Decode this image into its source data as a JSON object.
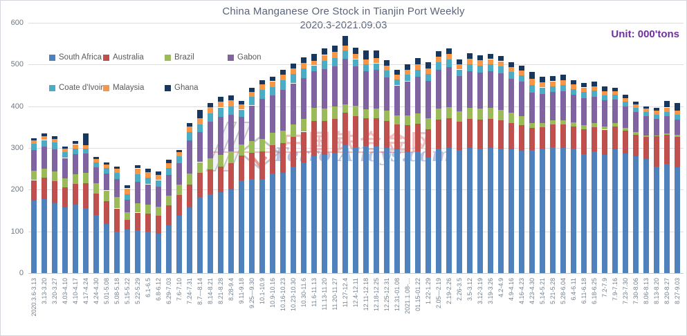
{
  "title": "China Manganese Ore Stock in Tianjin Port Weekly",
  "subtitle": "2020.3-2021.09.03",
  "unit_label": "Unit: 000'tons",
  "watermark": {
    "cn": "中国铁合金网",
    "en": "Ferro-Alloys.com"
  },
  "colors": {
    "south_africa": "#4F81BD",
    "australia": "#C0504D",
    "brazil": "#9BBB59",
    "gabon": "#8064A2",
    "coate_divoire": "#4BACC6",
    "malaysia": "#F79646",
    "ghana": "#17375E",
    "unit_text": "#7030A0",
    "gridline": "#dcdce2",
    "axis_text": "#6f7680"
  },
  "chart_data": {
    "type": "bar",
    "stacked": true,
    "title": "China Manganese Ore Stock in Tianjin Port Weekly",
    "subtitle": "2020.3-2021.09.03",
    "unit": "000'tons",
    "xlabel": "",
    "ylabel": "",
    "ylim": [
      0,
      600
    ],
    "yticks": [
      0,
      100,
      200,
      300,
      400,
      500,
      600
    ],
    "grid": true,
    "legend_position": "inside-top-left",
    "categories": [
      "2020.3.6-3.13",
      "3.13-3.20",
      "3.20-3.27",
      "4.03-4.10",
      "4.10-4.17",
      "4.17-4.24",
      "4.24-4.30",
      "5.01-5.08",
      "5.08-5.18",
      "5.15-5.22",
      "5.22-5.29",
      "6.1-6.5",
      "6.8-6.12",
      "6.29-7.03",
      "7.6-7.10",
      "7.24-7.31",
      "8.7—8.14",
      "8.14-8.21",
      "8.21-8.28",
      "8.28-9.4",
      "9.11-9.18",
      "9.25—9.30",
      "10.1-10.9",
      "10.9-10.16",
      "10.16-10.23",
      "10.23-10.30",
      "10.30-11.6",
      "11.6-11.13",
      "11.13-11.20",
      "11.20-11.27",
      "11.27-12.4",
      "12.4-12.11",
      "12.11-12.18",
      "12.18-12.25",
      "12.25-12.31",
      "12.31-01.08",
      "2021.1.08-…",
      "01.15-01.22",
      "1.22-1.29",
      "2.05—2.19",
      "2.19-2.26",
      "2.26-3.5",
      "3.5-3.12",
      "3.12-3.19",
      "3.19-3.26",
      "4.2-4.9",
      "4.9-4.16",
      "4.16-4.23",
      "4.23-4.30",
      "5.14-5.21",
      "5.21-5.28",
      "5.28-6.04",
      "6.4-6.11",
      "6.11-6.18",
      "6.18-6.25",
      "7.2-7.9",
      "7.9-7.16",
      "7.23-7.30",
      "7.30-8.06",
      "8.06-8.13",
      "8.13-8.20",
      "8.20-8.27",
      "8.27-9.03"
    ],
    "series": [
      {
        "name": "South Africa",
        "color": "#4F81BD",
        "values": [
          175,
          178,
          168,
          157,
          164,
          156,
          139,
          117,
          100,
          104,
          103,
          99,
          95,
          114,
          137,
          157,
          182,
          189,
          194,
          201,
          222,
          225,
          226,
          238,
          241,
          255,
          265,
          280,
          284,
          288,
          307,
          302,
          305,
          303,
          300,
          296,
          290,
          292,
          277,
          298,
          300,
          295,
          300,
          298,
          300,
          298,
          296,
          293,
          295,
          298,
          302,
          300,
          298,
          285,
          292,
          284,
          296,
          287,
          280,
          274,
          255,
          262,
          254
        ]
      },
      {
        "name": "Australia",
        "color": "#C0504D",
        "values": [
          48,
          50,
          52,
          48,
          50,
          60,
          52,
          55,
          55,
          24,
          42,
          44,
          42,
          48,
          50,
          55,
          59,
          60,
          62,
          63,
          60,
          64,
          66,
          68,
          70,
          72,
          74,
          85,
          80,
          82,
          78,
          74,
          66,
          68,
          65,
          60,
          64,
          66,
          68,
          70,
          72,
          68,
          70,
          70,
          70,
          68,
          64,
          62,
          53,
          52,
          54,
          56,
          54,
          60,
          58,
          60,
          56,
          54,
          52,
          52,
          73,
          70,
          73
        ]
      },
      {
        "name": "Brazil",
        "color": "#9BBB59",
        "values": [
          22,
          23,
          24,
          23,
          23,
          25,
          24,
          26,
          28,
          18,
          22,
          22,
          22,
          24,
          25,
          26,
          25,
          26,
          27,
          28,
          26,
          28,
          30,
          30,
          31,
          30,
          31,
          31,
          30,
          30,
          19,
          25,
          22,
          24,
          24,
          22,
          24,
          25,
          26,
          26,
          26,
          25,
          26,
          26,
          26,
          25,
          24,
          22,
          11,
          10,
          10,
          10,
          9,
          9,
          9,
          8,
          8,
          7,
          6,
          4,
          2,
          3,
          4
        ]
      },
      {
        "name": "Gabon",
        "color": "#8064A2",
        "values": [
          50,
          52,
          53,
          48,
          48,
          45,
          38,
          40,
          42,
          29,
          52,
          48,
          48,
          50,
          52,
          80,
          72,
          88,
          92,
          88,
          66,
          85,
          95,
          90,
          98,
          98,
          98,
          88,
          95,
          96,
          110,
          94,
          91,
          92,
          80,
          72,
          82,
          88,
          90,
          94,
          96,
          84,
          88,
          86,
          88,
          88,
          82,
          82,
          74,
          70,
          68,
          70,
          66,
          66,
          64,
          62,
          56,
          52,
          48,
          46,
          39,
          42,
          37
        ]
      },
      {
        "name": "Coate d'Ivoire",
        "color": "#4BACC6",
        "values": [
          15,
          16,
          16,
          14,
          14,
          12,
          12,
          14,
          15,
          14,
          18,
          16,
          16,
          16,
          16,
          20,
          19,
          20,
          22,
          20,
          18,
          20,
          22,
          20,
          22,
          22,
          22,
          14,
          20,
          20,
          20,
          18,
          16,
          16,
          16,
          14,
          15,
          16,
          17,
          18,
          18,
          16,
          17,
          17,
          16,
          16,
          16,
          15,
          18,
          15,
          14,
          15,
          14,
          14,
          14,
          12,
          11,
          11,
          10,
          10,
          10,
          10,
          11
        ]
      },
      {
        "name": "Malaysia",
        "color": "#F79646",
        "values": [
          8,
          9,
          9,
          9,
          10,
          9,
          8,
          9,
          10,
          14,
          14,
          13,
          12,
          12,
          10,
          14,
          14,
          15,
          14,
          15,
          12,
          13,
          14,
          14,
          14,
          14,
          14,
          11,
          14,
          14,
          12,
          13,
          12,
          13,
          12,
          11,
          12,
          13,
          13,
          13,
          13,
          12,
          13,
          13,
          13,
          13,
          12,
          12,
          14,
          13,
          12,
          12,
          11,
          11,
          11,
          10,
          9,
          9,
          8,
          8,
          10,
          10,
          11
        ]
      },
      {
        "name": "Ghana",
        "color": "#17375E",
        "values": [
          6,
          7,
          7,
          5,
          8,
          28,
          5,
          5,
          6,
          8,
          8,
          8,
          9,
          8,
          5,
          8,
          20,
          10,
          12,
          11,
          8,
          10,
          10,
          10,
          11,
          12,
          13,
          16,
          15,
          15,
          23,
          14,
          22,
          17,
          13,
          12,
          14,
          15,
          14,
          13,
          14,
          12,
          13,
          13,
          13,
          12,
          12,
          12,
          17,
          12,
          13,
          13,
          11,
          11,
          11,
          11,
          8,
          7,
          7,
          6,
          8,
          15,
          18
        ]
      }
    ]
  }
}
